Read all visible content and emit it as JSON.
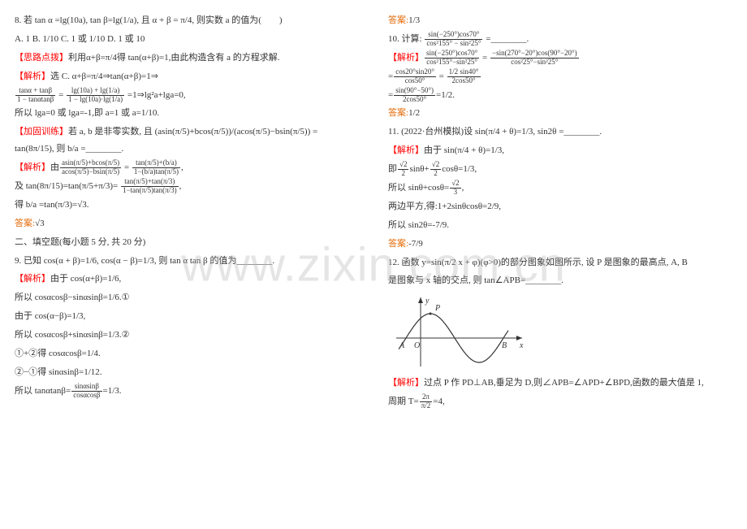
{
  "watermark_text": "www.zixin.com.cn",
  "left_column": {
    "q8_stem": "8. 若 tan α =lg(10a), tan β=lg(1/a), 且 α + β = π/4, 则实数 a 的值为(　　)",
    "q8_options": "A. 1          B. 1/10          C. 1 或 1/10          D. 1 或 10",
    "hint_label": "【思路点拨】",
    "hint_text": "利用α+β=π/4得 tan(α+β)=1,由此构造含有 a 的方程求解.",
    "analysis_label": "【解析】",
    "analysis_text1": "选 C. α+β=π/4⇒tan(α+β)=1⇒",
    "frac_line1_num": "tanα + tanβ",
    "frac_line1_den": "1 − tanαtanβ",
    "frac_mid": " = ",
    "frac_line2_num": "lg(10a) + lg(1/a)",
    "frac_line2_den": "1 − lg(10a)·lg(1/a)",
    "frac_after": " =1⇒lg²a+lga=0,",
    "so1": "所以 lga=0 或 lga=-1,即 a=1 或 a=1/10.",
    "practice_label": "【加固训练】",
    "practice_text": "若 a, b 是非零实数, 且 (asin(π/5)+bcos(π/5))/(acos(π/5)−bsin(π/5)) = tan(8π/15), 则 b/a =________.",
    "practice_analysis_label": "【解析】",
    "practice_frac_intro": "由",
    "practice_frac1_num": "asin(π/5)+bcos(π/5)",
    "practice_frac1_den": "acos(π/5)−bsin(π/5)",
    "practice_frac_eq": " = ",
    "practice_frac2_num": "tan(π/5)+(b/a)",
    "practice_frac2_den": "1−(b/a)tan(π/5)",
    "practice_frac_comma": ",",
    "practice_and": "及 tan(8π/15)=tan(π/5+π/3)= ",
    "practice_frac3_num": "tan(π/5)+tan(π/3)",
    "practice_frac3_den": "1−tan(π/5)tan(π/3)",
    "practice_comma2": ",",
    "practice_result": "得 b/a =tan(π/3)=√3.",
    "practice_ans_label": "答案:",
    "practice_ans": "√3",
    "section2_title": "二、填空题(每小题 5 分, 共 20 分)",
    "q9_stem": "9. 已知 cos(α + β)=1/6, cos(α − β)=1/3, 则 tan α tan β 的值为________.",
    "q9_analysis_label": "【解析】",
    "q9_line1": "由于 cos(α+β)=1/6,",
    "q9_line2": "所以 cosαcosβ−sinαsinβ=1/6.①",
    "q9_line3": "由于 cos(α−β)=1/3,",
    "q9_line4": "所以 cosαcosβ+sinαsinβ=1/3.②",
    "q9_line5": "①+②得 cosαcosβ=1/4.",
    "q9_line6": "②−①得 sinαsinβ=1/12.",
    "q9_line7_pre": "所以 tanαtanβ=",
    "q9_frac_num": "sinαsinβ",
    "q9_frac_den": "cosαcosβ",
    "q9_line7_post": "=1/3."
  },
  "right_column": {
    "q9_ans_label": "答案:",
    "q9_ans": "1/3",
    "q10_stem_pre": "10. 计算: ",
    "q10_frac1_num": "sin(−250°)cos70°",
    "q10_frac1_den": "cos²155° − sin²25°",
    "q10_stem_post": " =________.",
    "q10_analysis_label": "【解析】",
    "q10_line1_a_num": "sin(−250°)cos70°",
    "q10_line1_a_den": "cos²155°−sin²25°",
    "q10_eq1": " = ",
    "q10_line1_b_num": "−sin(270°−20°)cos(90°−20°)",
    "q10_line1_b_den": "cos²25°−sin²25°",
    "q10_line2_eq": "=",
    "q10_line2_a_num": "cos20°sin20°",
    "q10_line2_a_den": "cos50°",
    "q10_line2_mid": " = ",
    "q10_line2_b_num": "1/2 sin40°",
    "q10_line2_b_den": "2cos50°",
    "q10_line3_eq": "=",
    "q10_line3_a_num": "sin(90°−50°)",
    "q10_line3_a_den": "2cos50°",
    "q10_line3_post": "=1/2.",
    "q10_ans_label": "答案:",
    "q10_ans": "1/2",
    "q11_stem": "11. (2022·台州模拟)设 sin(π/4 + θ)=1/3, sin2θ =________.",
    "q11_analysis_label": "【解析】",
    "q11_line1": "由于 sin(π/4 + θ)=1/3,",
    "q11_line2_pre": "即",
    "q11_line2_a_num": "√2",
    "q11_line2_a_den": "2",
    "q11_line2_mid1": "sinθ+",
    "q11_line2_b_num": "√2",
    "q11_line2_b_den": "2",
    "q11_line2_post": "cosθ=1/3,",
    "q11_line3_pre": "所以 sinθ+cosθ=",
    "q11_line3_num": "√2",
    "q11_line3_den": "3",
    "q11_line3_post": ",",
    "q11_line4": "两边平方,得:1+2sinθcosθ=2/9,",
    "q11_line5": "所以 sin2θ=-7/9.",
    "q11_ans_label": "答案:",
    "q11_ans": "-7/9",
    "q12_stem1": "12. 函数 y=sin(π/2 x + φ)(φ>0)的部分图象如图所示, 设 P 是图象的最高点, A, B",
    "q12_stem2": "是图象与 x 轴的交点, 则 tan∠APB=________.",
    "chart": {
      "type": "function-plot",
      "width": 170,
      "height": 95,
      "axis_color": "#333333",
      "curve_color": "#333333",
      "point_labels": [
        "P",
        "A",
        "O",
        "B",
        "x",
        "y"
      ],
      "amplitude": 1,
      "period": 4
    },
    "q12_analysis_label": "【解析】",
    "q12_analysis1": "过点 P 作 PD⊥AB,垂足为 D,则∠APB=∠APD+∠BPD,函数的最大值是 1,",
    "q12_analysis2_pre": "周期 T=",
    "q12_period_num": "2π",
    "q12_period_den": "π/2",
    "q12_analysis2_post": "=4,"
  },
  "colors": {
    "red": "#ff0000",
    "orange": "#e46c0a",
    "blue": "#3366cc",
    "text": "#333333",
    "bg": "#ffffff"
  }
}
